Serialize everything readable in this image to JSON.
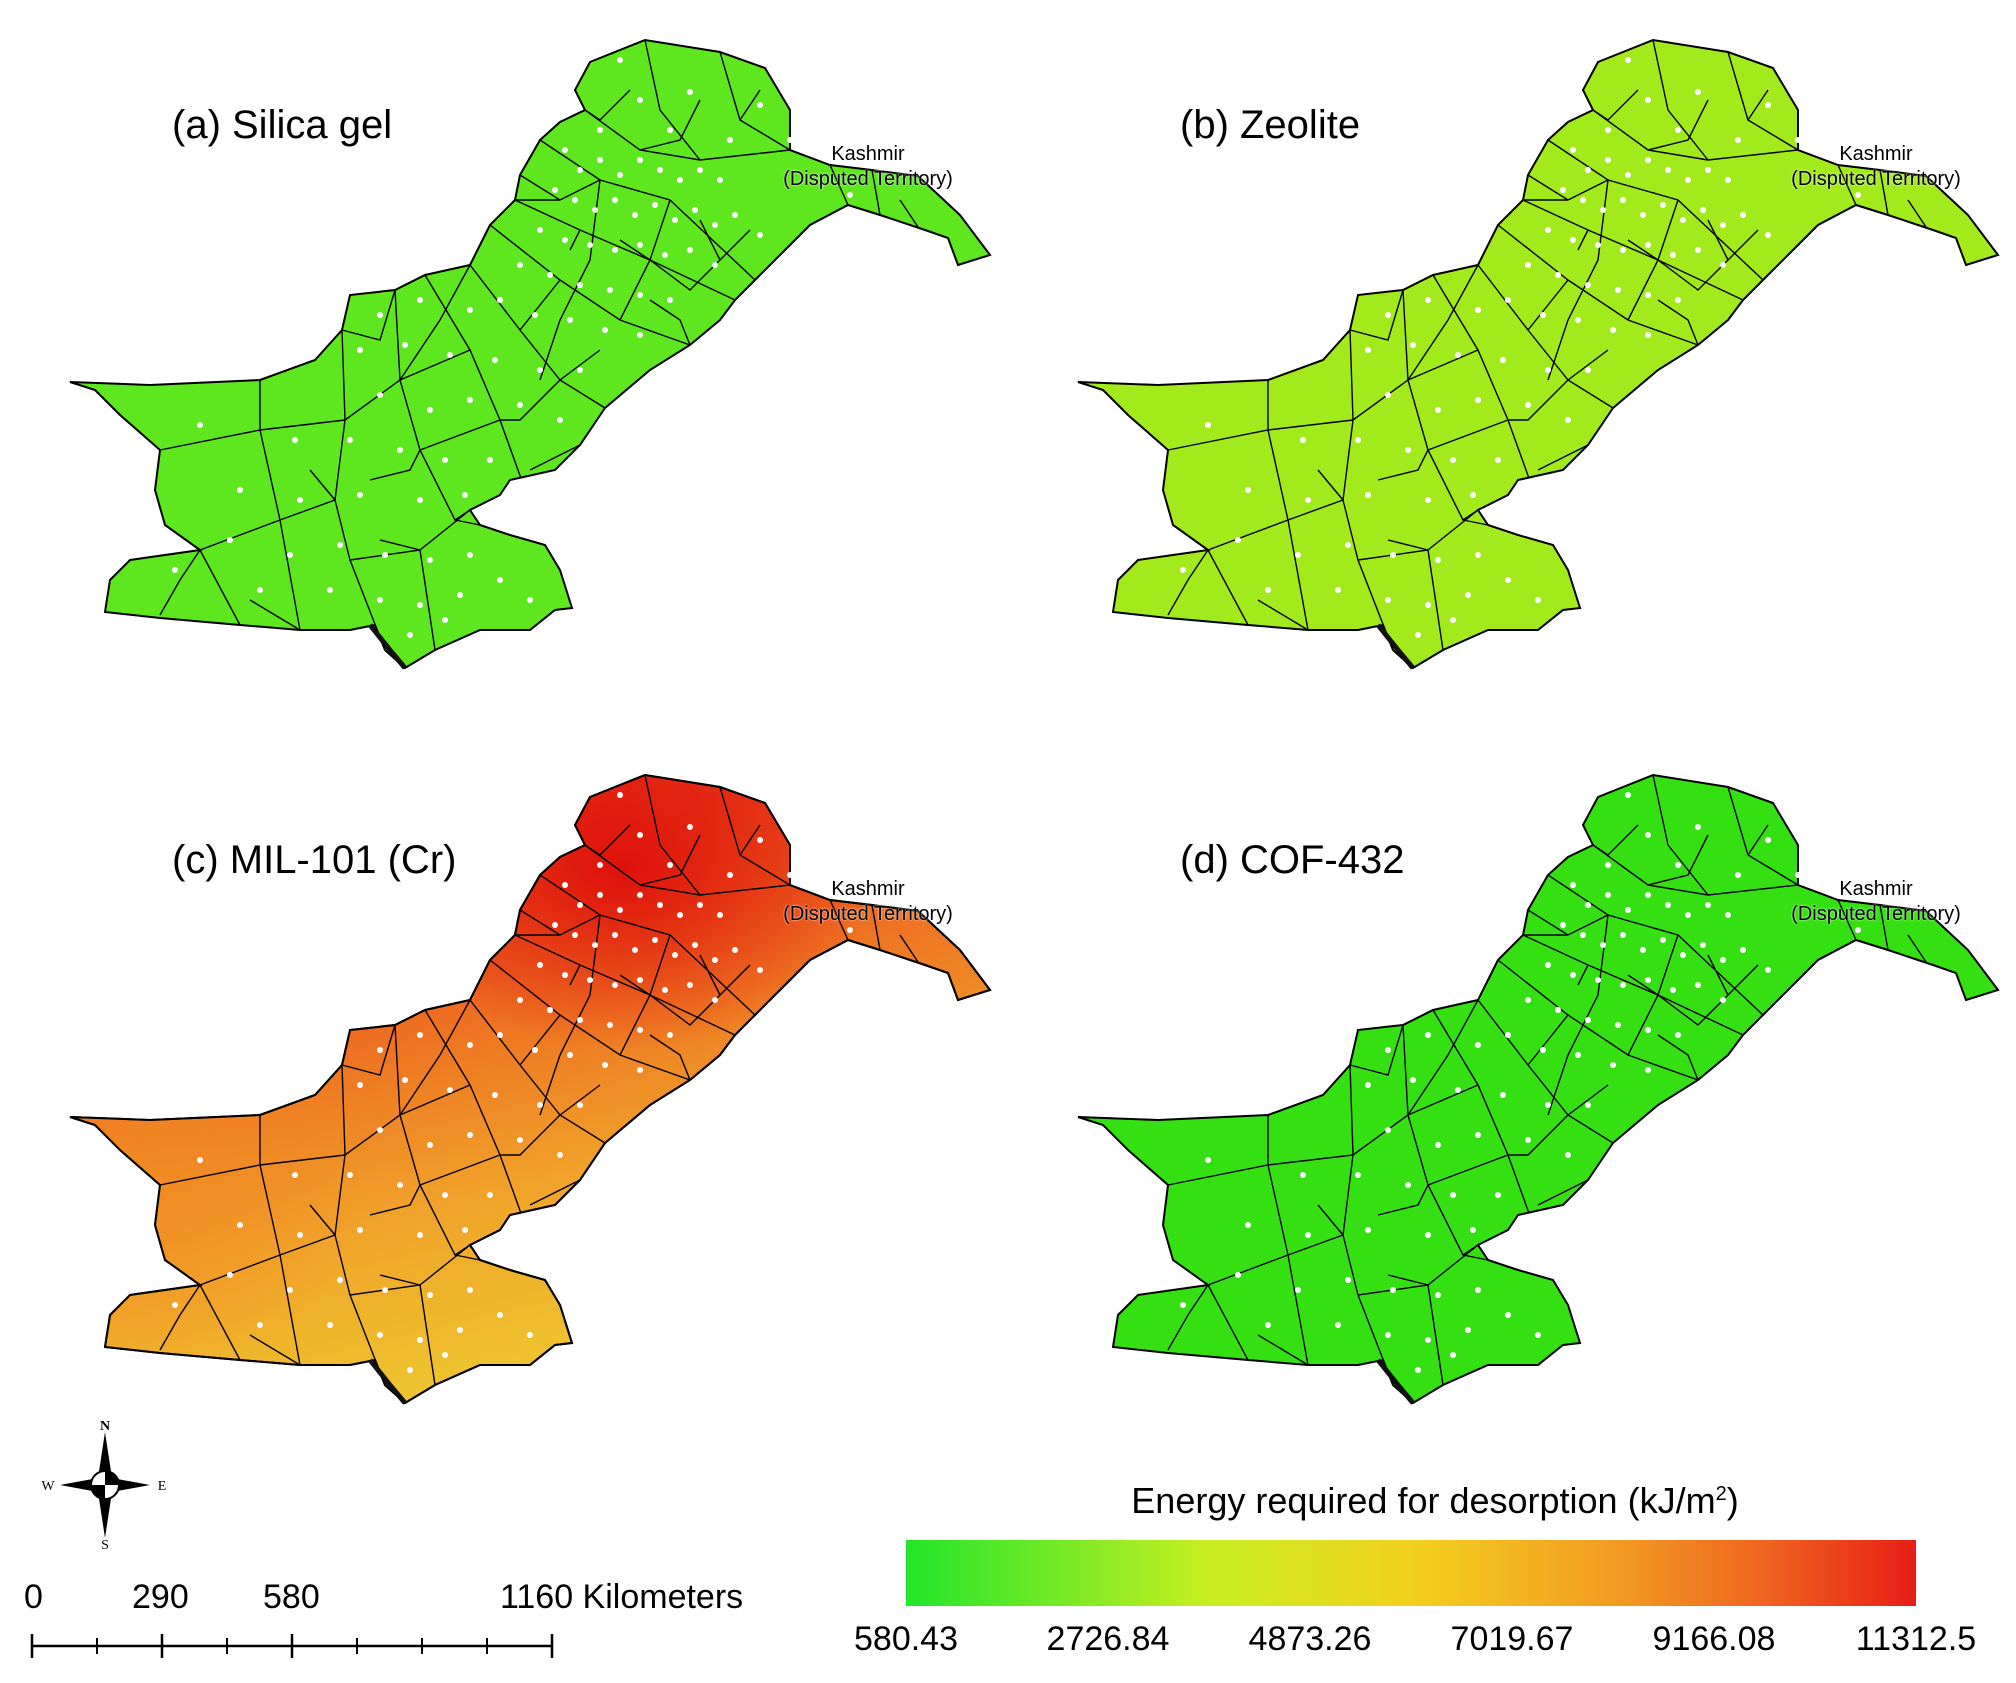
{
  "panels": [
    {
      "id": "a",
      "title": "(a) Silica gel",
      "fill": "#5ee61f",
      "kashmir_line1": "Kashmir",
      "kashmir_line2": "(Disputed Territory)"
    },
    {
      "id": "b",
      "title": "(b) Zeolite",
      "fill": "#a3ea1c",
      "kashmir_line1": "Kashmir",
      "kashmir_line2": "(Disputed Territory)"
    },
    {
      "id": "c",
      "title": "(c) MIL-101 (Cr)",
      "fill": "gradient",
      "kashmir_line1": "Kashmir",
      "kashmir_line2": "(Disputed Territory)"
    },
    {
      "id": "d",
      "title": "(d) COF-432",
      "fill": "#35e012",
      "kashmir_line1": "Kashmir",
      "kashmir_line2": "(Disputed Territory)"
    }
  ],
  "legend": {
    "title_main": "Energy required for desorption (kJ/m",
    "title_sup": "2",
    "title_end": ")",
    "ticks": [
      "580.43",
      "2726.84",
      "4873.26",
      "7019.67",
      "9166.08",
      "11312.5"
    ],
    "colors": [
      "#22e52a",
      "#ccee22",
      "#f4a621",
      "#ec2a19"
    ]
  },
  "compass": {
    "n": "N",
    "s": "S",
    "e": "E",
    "w": "W"
  },
  "scalebar": {
    "labels": [
      "0",
      "290",
      "580",
      "1160 Kilometers"
    ]
  }
}
